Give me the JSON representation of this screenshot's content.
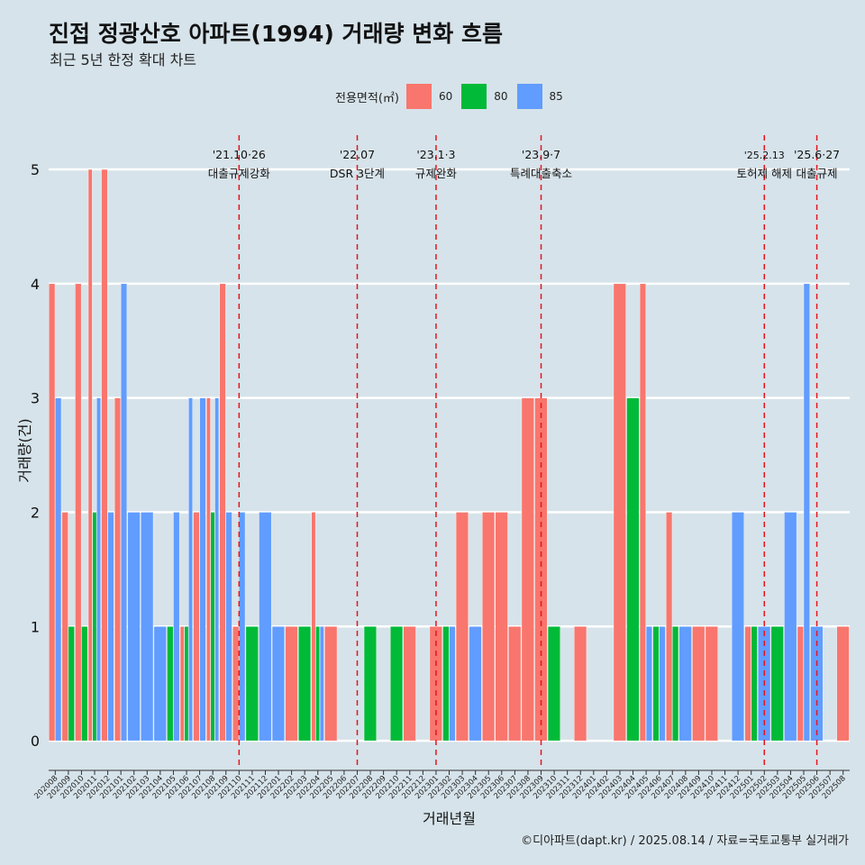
{
  "chart_data": {
    "type": "bar",
    "title": "진접 정광산호 아파트(1994) 거래량 변화 흐름",
    "subtitle": "최근 5년 한정 확대 차트",
    "xlabel": "거래년월",
    "ylabel": "거래량(건)",
    "ylim": [
      -0.22,
      5.3
    ],
    "yticks": [
      0,
      1,
      2,
      3,
      4,
      5
    ],
    "grid": "horizontal",
    "legend": {
      "title": "전용면적(㎡)",
      "position": "top"
    },
    "caption": "©디아파트(dapt.kr) / 2025.08.14 / 자료=국토교통부 실거래가",
    "categories": [
      "202008",
      "202009",
      "202010",
      "202011",
      "202012",
      "202101",
      "202102",
      "202103",
      "202104",
      "202105",
      "202106",
      "202107",
      "202108",
      "202109",
      "202110",
      "202111",
      "202112",
      "202201",
      "202202",
      "202203",
      "202204",
      "202205",
      "202206",
      "202207",
      "202208",
      "202209",
      "202210",
      "202211",
      "202212",
      "202301",
      "202302",
      "202303",
      "202304",
      "202305",
      "202306",
      "202307",
      "202308",
      "202309",
      "202310",
      "202311",
      "202312",
      "202401",
      "202402",
      "202403",
      "202404",
      "202405",
      "202406",
      "202407",
      "202408",
      "202409",
      "202410",
      "202411",
      "202412",
      "202501",
      "202502",
      "202503",
      "202504",
      "202505",
      "202506",
      "202507",
      "202508"
    ],
    "series": [
      {
        "name": "60",
        "color": "#f8766d",
        "values": [
          4,
          2,
          4,
          5,
          5,
          3,
          0,
          0,
          0,
          0,
          1,
          2,
          3,
          4,
          1,
          0,
          0,
          0,
          1,
          0,
          2,
          1,
          0,
          0,
          0,
          0,
          0,
          1,
          0,
          1,
          0,
          2,
          0,
          2,
          2,
          1,
          3,
          3,
          0,
          0,
          1,
          0,
          0,
          4,
          0,
          4,
          0,
          2,
          0,
          1,
          1,
          0,
          0,
          1,
          0,
          0,
          0,
          1,
          0,
          0,
          1
        ]
      },
      {
        "name": "80",
        "color": "#00ba38",
        "values": [
          0,
          1,
          1,
          2,
          0,
          0,
          0,
          0,
          0,
          1,
          1,
          0,
          2,
          0,
          0,
          1,
          0,
          0,
          0,
          1,
          1,
          0,
          0,
          0,
          1,
          0,
          1,
          0,
          0,
          0,
          1,
          0,
          0,
          0,
          0,
          0,
          0,
          0,
          1,
          0,
          0,
          0,
          0,
          0,
          3,
          0,
          1,
          1,
          0,
          0,
          0,
          0,
          0,
          1,
          0,
          1,
          0,
          0,
          0,
          0,
          0
        ]
      },
      {
        "name": "85",
        "color": "#619cff",
        "values": [
          3,
          0,
          0,
          3,
          2,
          4,
          2,
          2,
          1,
          2,
          3,
          3,
          3,
          2,
          2,
          0,
          2,
          1,
          0,
          0,
          1,
          0,
          0,
          0,
          0,
          0,
          0,
          0,
          0,
          0,
          1,
          0,
          1,
          0,
          0,
          0,
          0,
          0,
          0,
          0,
          0,
          0,
          0,
          0,
          0,
          1,
          1,
          0,
          1,
          0,
          0,
          0,
          2,
          0,
          1,
          0,
          2,
          4,
          1,
          0,
          0
        ]
      }
    ],
    "annotations": [
      {
        "x": "202110",
        "date": "'21.10·26",
        "label": "대출규제강화"
      },
      {
        "x": "202207",
        "date": "'22.07",
        "label": "DSR 3단계"
      },
      {
        "x": "202301",
        "date": "'23.1·3",
        "label": "규제완화"
      },
      {
        "x": "202309",
        "date": "'23.9·7",
        "label": "특례대출축소"
      },
      {
        "x": "202502",
        "date": "'25.2.13",
        "label": "토허제 해제"
      },
      {
        "x": "202506",
        "date": "'25.6·27",
        "label": "대출규제"
      }
    ]
  }
}
